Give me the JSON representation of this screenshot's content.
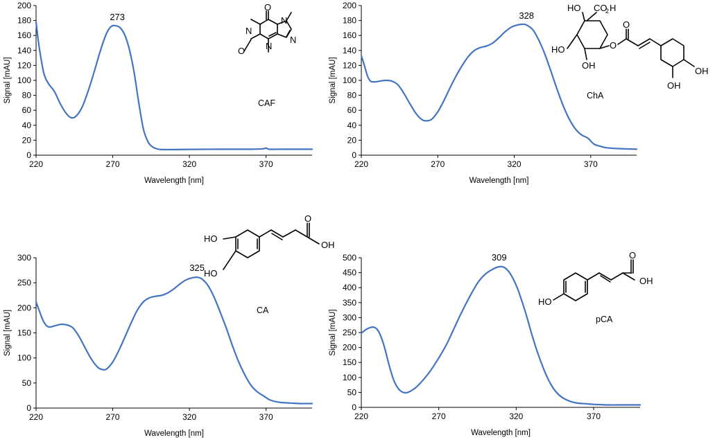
{
  "chart_data": [
    {
      "type": "line",
      "compound": "CAF",
      "peak_label": "273",
      "peak_x": 273,
      "xlabel": "Wavelength [nm]",
      "ylabel": "Signal [mAU]",
      "xlim": [
        220,
        400
      ],
      "ylim": [
        0,
        200
      ],
      "xticks": [
        220,
        270,
        320,
        370
      ],
      "yticks": [
        0,
        20,
        40,
        60,
        80,
        100,
        120,
        140,
        160,
        180,
        200
      ],
      "x": [
        220,
        222,
        225,
        228,
        232,
        236,
        240,
        243,
        246,
        250,
        254,
        258,
        262,
        266,
        269,
        272,
        275,
        278,
        281,
        284,
        287,
        290,
        293,
        296,
        300,
        305,
        310,
        320,
        340,
        360,
        368,
        370,
        372,
        380,
        390,
        400
      ],
      "y": [
        178,
        145,
        110,
        96,
        85,
        68,
        55,
        50,
        52,
        64,
        86,
        112,
        140,
        163,
        172,
        173,
        170,
        160,
        140,
        110,
        70,
        35,
        18,
        11,
        8,
        7.5,
        7.5,
        7.8,
        8,
        8,
        8.5,
        9.5,
        8,
        8,
        8,
        8
      ]
    },
    {
      "type": "line",
      "compound": "ChA",
      "peak_label": "328",
      "peak_x": 328,
      "xlabel": "Wavelength [nm]",
      "ylabel": "Signal [mAU]",
      "xlim": [
        220,
        400
      ],
      "ylim": [
        0,
        200
      ],
      "xticks": [
        220,
        270,
        320,
        370
      ],
      "yticks": [
        0,
        20,
        40,
        60,
        80,
        100,
        120,
        140,
        160,
        180,
        200
      ],
      "x": [
        220,
        222,
        224,
        226,
        229,
        232,
        236,
        240,
        244,
        248,
        252,
        256,
        260,
        263,
        266,
        270,
        274,
        278,
        282,
        286,
        290,
        294,
        298,
        302,
        306,
        310,
        314,
        318,
        322,
        326,
        328,
        332,
        336,
        340,
        344,
        348,
        352,
        356,
        360,
        364,
        368,
        372,
        376,
        380,
        386,
        392,
        400
      ],
      "y": [
        133,
        120,
        106,
        99,
        98,
        99,
        100,
        99,
        94,
        82,
        68,
        55,
        47,
        46,
        48,
        58,
        73,
        90,
        106,
        120,
        132,
        140,
        144,
        146,
        150,
        157,
        165,
        171,
        174,
        175,
        174,
        168,
        154,
        135,
        112,
        88,
        66,
        48,
        35,
        27,
        23,
        15,
        12,
        10,
        9,
        8.5,
        8
      ]
    },
    {
      "type": "line",
      "compound": "CA",
      "peak_label": "325",
      "peak_x": 325,
      "xlabel": "Wavelength [nm]",
      "ylabel": "Signal [mAU]",
      "xlim": [
        220,
        400
      ],
      "ylim": [
        0,
        300
      ],
      "xticks": [
        220,
        270,
        320,
        370
      ],
      "yticks": [
        0,
        50,
        100,
        150,
        200,
        250,
        300
      ],
      "x": [
        220,
        222,
        225,
        228,
        232,
        236,
        240,
        244,
        248,
        252,
        256,
        260,
        263,
        266,
        270,
        274,
        278,
        282,
        286,
        290,
        294,
        298,
        302,
        306,
        310,
        314,
        318,
        322,
        325,
        328,
        332,
        336,
        340,
        344,
        348,
        352,
        356,
        360,
        364,
        368,
        372,
        376,
        380,
        386,
        392,
        400
      ],
      "y": [
        212,
        195,
        172,
        162,
        164,
        167,
        166,
        160,
        143,
        120,
        98,
        82,
        77,
        78,
        92,
        115,
        142,
        170,
        195,
        212,
        220,
        223,
        225,
        230,
        238,
        248,
        256,
        260,
        261,
        258,
        245,
        222,
        192,
        160,
        125,
        93,
        67,
        46,
        33,
        25,
        17,
        13,
        11,
        10,
        9,
        9
      ]
    },
    {
      "type": "line",
      "compound": "pCA",
      "peak_label": "309",
      "peak_x": 309,
      "xlabel": "Wavelength [nm]",
      "ylabel": "Signal [mAU]",
      "xlim": [
        220,
        400
      ],
      "ylim": [
        0,
        500
      ],
      "xticks": [
        220,
        270,
        320,
        370
      ],
      "yticks": [
        0,
        50,
        100,
        150,
        200,
        250,
        300,
        350,
        400,
        450,
        500
      ],
      "x": [
        220,
        223,
        226,
        228,
        230,
        232,
        235,
        238,
        241,
        244,
        247,
        250,
        253,
        256,
        260,
        265,
        270,
        275,
        280,
        285,
        290,
        295,
        300,
        305,
        309,
        312,
        315,
        318,
        321,
        324,
        327,
        330,
        334,
        338,
        342,
        346,
        350,
        355,
        360,
        365,
        370,
        375,
        380,
        390,
        400
      ],
      "y": [
        248,
        260,
        267,
        268,
        262,
        245,
        200,
        140,
        90,
        62,
        50,
        50,
        58,
        70,
        92,
        125,
        165,
        210,
        265,
        320,
        370,
        415,
        445,
        462,
        470,
        468,
        455,
        430,
        395,
        350,
        300,
        245,
        180,
        125,
        80,
        50,
        32,
        20,
        14,
        12,
        10,
        9,
        8,
        8,
        8
      ]
    }
  ]
}
